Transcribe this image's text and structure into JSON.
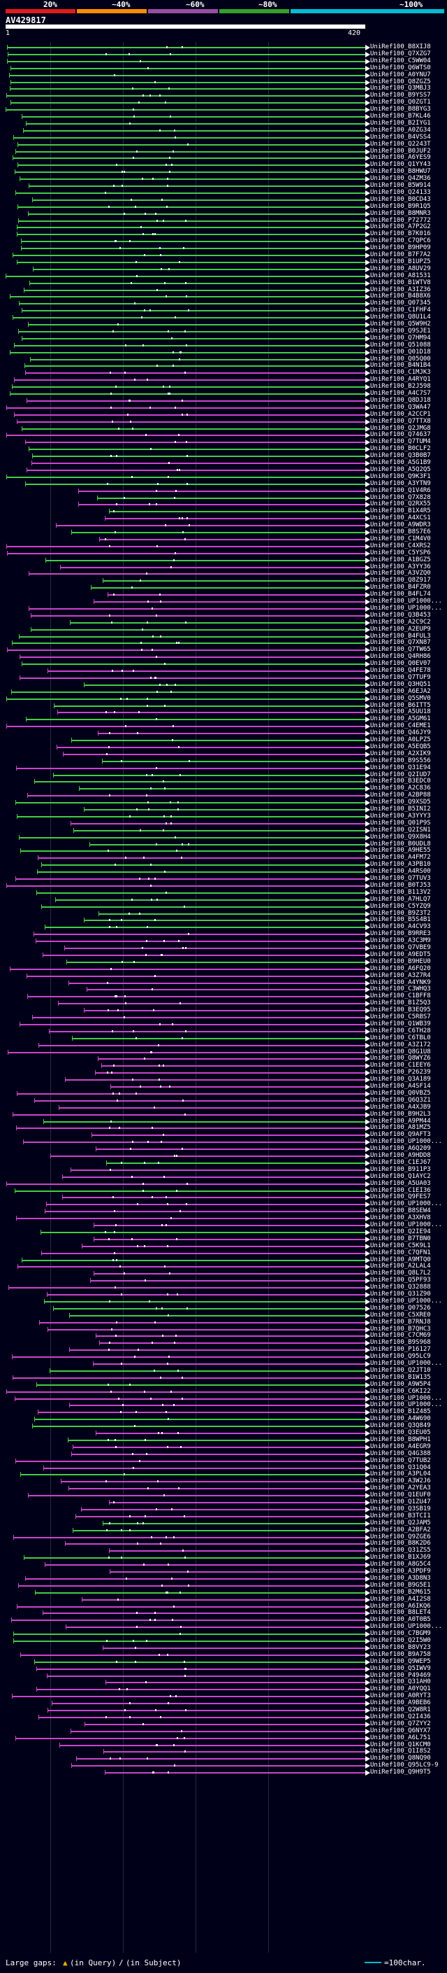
{
  "scale": {
    "labels": [
      "20%",
      "~40%",
      "~60%",
      "~80%",
      "~100%"
    ],
    "colors": [
      "#e41a1c",
      "#ff8c00",
      "#984ea3",
      "#33a02c",
      "#00bcd4"
    ]
  },
  "query": {
    "name": "AV429817",
    "start": "1",
    "end": "420"
  },
  "colors": {
    "hit_primary": "#44cc44",
    "hit_secondary": "#cc44cc",
    "gap_dot": "#ffffff",
    "arrow": "#ffffff",
    "partial": "#ffaa00"
  },
  "hits": [
    "UniRef100_B8XIJ8",
    "UniRef100_Q7XZG7",
    "UniRef100_C5WW04",
    "UniRef100_Q6WTS0",
    "UniRef100_A0YNU7",
    "UniRef100_Q8ZGZ5",
    "UniRef100_Q3MBJ3",
    "UniRef100_B9YSS7",
    "UniRef100_Q0ZGT1",
    "UniRef100_B8BYG3",
    "UniRef100_B7KL46",
    "UniRef100_B2IYG1",
    "UniRef100_A0ZG34",
    "UniRef100_B4VSS4",
    "UniRef100_Q2243T",
    "UniRef100_B0JUF2",
    "UniRef100_A6YES9",
    "UniRef100_Q1YY43",
    "UniRef100_B8HWU7",
    "UniRef100_Q4ZM36",
    "UniRef100_B5W914",
    "UniRef100_Q24133",
    "UniRef100_B0CD43",
    "UniRef100_B9R1Q5",
    "UniRef100_B8MNR3",
    "UniRef100_P72772",
    "UniRef100_A7P2G2",
    "UniRef100_B7K016",
    "UniRef100_C7QPC6",
    "UniRef100_B9HP09",
    "UniRef100_B7F7A2",
    "UniRef100_B1UPZ5",
    "UniRef100_A8UV29",
    "UniRef100_A81531",
    "UniRef100_B1WTV8",
    "UniRef100_A3IZ36",
    "UniRef100_B4B8X6",
    "UniRef100_Q07345",
    "UniRef100_C1FHF4",
    "UniRef100_Q8U1L4",
    "UniRef100_Q5W9H2",
    "UniRef100_Q9SJE1",
    "UniRef100_Q7HM94",
    "UniRef100_Q51088",
    "UniRef100_Q01D18",
    "UniRef100_Q05Q00",
    "UniRef100_B4N1B4",
    "UniRef100_C1MJK3",
    "UniRef100_A4RYQ1",
    "UniRef100_B2J598",
    "UniRef100_A4C7S7",
    "UniRef100_Q8DJ18",
    "UniRef100_Q3WA47",
    "UniRef100_A2CCP1",
    "UniRef100_Q7TTX8",
    "UniRef100_Q2JMG8",
    "UniRef100_Q74637",
    "UniRef100_Q7TUM4",
    "UniRef100_B0CLF2",
    "UniRef100_Q3B0B7",
    "UniRef100_A5G1B9",
    "UniRef100_A5Q2Q5",
    "UniRef100_Q9K3F1",
    "UniRef100_A3YTN9",
    "UniRef100_Q1V4R6",
    "UniRef100_Q7X828",
    "UniRef100_Q2RX55",
    "UniRef100_B1X4R5",
    "UniRef100_A4XCS1",
    "UniRef100_A9WDR3",
    "UniRef100_B8S7E6",
    "UniRef100_C1M4V0",
    "UniRef100_C4XRS2",
    "UniRef100_C5YSP6",
    "UniRef100_A1BGZ5",
    "UniRef100_A3YY36",
    "UniRef100_A3VZQ0",
    "UniRef100_Q8Z917",
    "UniRef100_B4FZR0",
    "UniRef100_B4FL74",
    "UniRef100_UP1000...",
    "UniRef100_UP1000...",
    "UniRef100_Q3B453",
    "UniRef100_A2C9C2",
    "UniRef100_A2EUP9",
    "UniRef100_B4FUL3",
    "UniRef100_Q7XN87",
    "UniRef100_Q7TW65",
    "UniRef100_Q4RH86",
    "UniRef100_Q0EV07",
    "UniRef100_Q4FE78",
    "UniRef100_Q7TUF9",
    "UniRef100_Q3HQ51",
    "UniRef100_A6EJA2",
    "UniRef100_Q5SMV0",
    "UniRef100_B6ITT5",
    "UniRef100_A5UU18",
    "UniRef100_A5GM61",
    "UniRef100_C4EME1",
    "UniRef100_Q46JY9",
    "UniRef100_A0LPZ5",
    "UniRef100_A5EQB5",
    "UniRef100_A2XIK9",
    "UniRef100_B9S556",
    "UniRef100_Q31E94",
    "UniRef100_Q2IUD7",
    "UniRef100_B3EDC0",
    "UniRef100_A2C836",
    "UniRef100_A2BP88",
    "UniRef100_Q9XSD5",
    "UniRef100_B5INI2",
    "UniRef100_A3YYY3",
    "UniRef100_Q01P9S",
    "UniRef100_Q2ISN1",
    "UniRef100_Q9X8H4",
    "UniRef100_B0UDL8",
    "UniRef100_A9HE55",
    "UniRef100_A4FM72",
    "UniRef100_A3PB10",
    "UniRef100_A4RS00",
    "UniRef100_Q7TUV3",
    "UniRef100_B0TJ53",
    "UniRef100_B113V2",
    "UniRef100_A7HLQ7",
    "UniRef100_C5YZQ9",
    "UniRef100_B9Z3T2",
    "UniRef100_B5S4B1",
    "UniRef100_A4CV93",
    "UniRef100_B9RRE3",
    "UniRef100_A3C3M9",
    "UniRef100_Q7VBE9",
    "UniRef100_A9EDT5",
    "UniRef100_B9HEU0",
    "UniRef100_A6FQ20",
    "UniRef100_A3Z7R4",
    "UniRef100_A4YNK9",
    "UniRef100_C3WHQ3",
    "UniRef100_C1BFF8",
    "UniRef100_B1Z5Q3",
    "UniRef100_B3EQ95",
    "UniRef100_C5RBS7",
    "UniRef100_Q1WB39",
    "UniRef100_C6TH28",
    "UniRef100_C6TBL0",
    "UniRef100_A3Z172",
    "UniRef100_Q8G1U8",
    "UniRef100_Q8WYZ6",
    "UniRef100_C1EEY6",
    "UniRef100_P26239",
    "UniRef100_Q3A189",
    "UniRef100_A4SF14",
    "UniRef100_Q0VBZ5",
    "UniRef100_Q6Q3Z1",
    "UniRef100_A4XJB9",
    "UniRef100_B9H2L3",
    "UniRef100_A9PM44",
    "UniRef100_A81MZ5",
    "UniRef100_Q9AFT3",
    "UniRef100_UP1000...",
    "UniRef100_A6Q209",
    "UniRef100_A9HDD8",
    "UniRef100_C1EJ67",
    "UniRef100_B911P3",
    "UniRef100_Q1AYC2",
    "UniRef100_A5UA03",
    "UniRef100_C1EI36",
    "UniRef100_Q9FES7",
    "UniRef100_UP1000...",
    "UniRef100_B8SEW4",
    "UniRef100_A3XHV8",
    "UniRef100_UP1000...",
    "UniRef100_Q2IE94",
    "UniRef100_B7TBN0",
    "UniRef100_C5K9L1",
    "UniRef100_C7QFN1",
    "UniRef100_A9MTQ0",
    "UniRef100_A2LAL4",
    "UniRef100_Q8L7L2",
    "UniRef100_Q5PF93",
    "UniRef100_Q32888",
    "UniRef100_Q31Z90",
    "UniRef100_UP1000...",
    "UniRef100_Q07526",
    "UniRef100_C5XRE0",
    "UniRef100_B7RNJ8",
    "UniRef100_B7QHC3",
    "UniRef100_C7CM69",
    "UniRef100_B9S968",
    "UniRef100_P16127",
    "UniRef100_Q95LC9",
    "UniRef100_UP1000...",
    "UniRef100_Q2JT10",
    "UniRef100_B1W135",
    "UniRef100_A9W5P4",
    "UniRef100_C6KI22",
    "UniRef100_UP1000...",
    "UniRef100_UP1000...",
    "UniRef100_B1Z485",
    "UniRef100_A4W690",
    "UniRef100_Q3Q849",
    "UniRef100_Q3EU05",
    "UniRef100_B8WPH1",
    "UniRef100_A4EGR9",
    "UniRef100_Q4G388",
    "UniRef100_Q7TUB2",
    "UniRef100_Q31Q04",
    "UniRef100_A3PL04",
    "UniRef100_A3W2J6",
    "UniRef100_A2YEA3",
    "UniRef100_Q1EUF0",
    "UniRef100_Q1ZU47",
    "UniRef100_Q3SB19",
    "UniRef100_B3TCI1",
    "UniRef100_Q2JAM5",
    "UniRef100_A2BFA2",
    "UniRef100_Q9ZGE6",
    "UniRef100_B8K2D6",
    "UniRef100_Q31ZS5",
    "UniRef100_B1XJ69",
    "UniRef100_A8G5C4",
    "UniRef100_A3PDF9",
    "UniRef100_A3D8N3",
    "UniRef100_B9G5E1",
    "UniRef100_B2M615",
    "UniRef100_A4I2S8",
    "UniRef100_A6IKQ6",
    "UniRef100_B8LET4",
    "UniRef100_A0T0B5",
    "UniRef100_UP1000...",
    "UniRef100_C7BGM9",
    "UniRef100_Q2I5W0",
    "UniRef100_B8VY23",
    "UniRef100_B9A758",
    "UniRef100_Q9WEP5",
    "UniRef100_Q5IWV9",
    "UniRef100_P49469",
    "UniRef100_Q31AH0",
    "UniRef100_A0YQQ1",
    "UniRef100_A0RYT3",
    "UniRef100_A9BEB6",
    "UniRef100_Q2W8R1",
    "UniRef100_Q2I436",
    "UniRef100_Q7ZYY2",
    "UniRef100_Q6NYX7",
    "UniRef100_A6L751",
    "UniRef100_Q1KCM0",
    "UniRef100_Q1I8S2",
    "UniRef100_Q8NQ90",
    "UniRef100_Q95LC9-9",
    "UniRef100_Q9H9T5"
  ],
  "legend": {
    "prefix": "Large gaps:",
    "query_gap": "(in Query)",
    "separator": "/",
    "subject_gap": "(in Subject)",
    "scale_text": "=100char."
  }
}
